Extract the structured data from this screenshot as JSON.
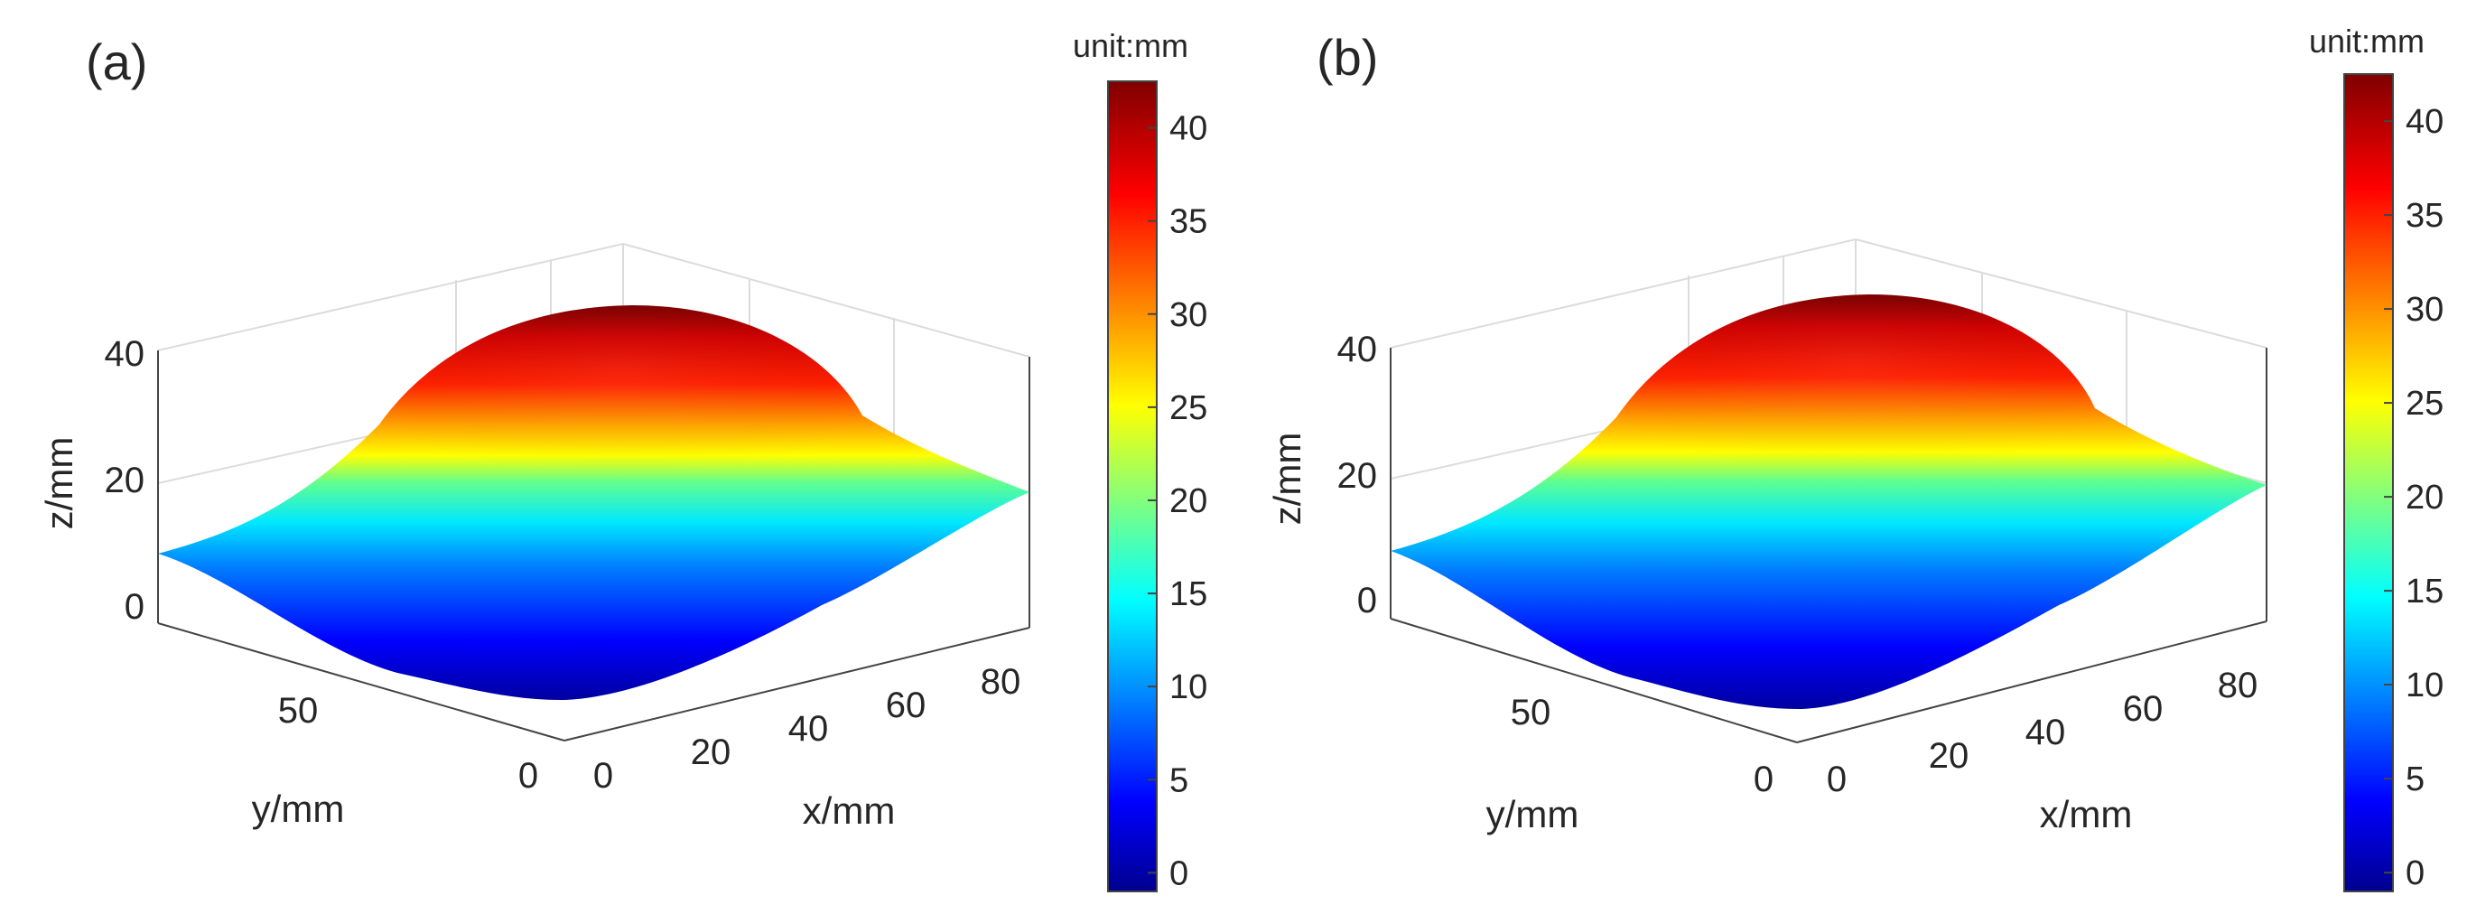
{
  "figure": {
    "panels": [
      "(a)",
      "(b)"
    ]
  },
  "chart_data": [
    {
      "type": "surface",
      "panel_label": "(a)",
      "zlabel": "z/mm",
      "xlabel": "x/mm",
      "ylabel": "y/mm",
      "z_ticks": [
        0,
        20,
        40
      ],
      "x_ticks": [
        0,
        20,
        40,
        60,
        80
      ],
      "y_ticks": [
        0,
        50
      ],
      "xlim": [
        0,
        90
      ],
      "ylim": [
        0,
        90
      ],
      "zlim": [
        0,
        42
      ],
      "surface": {
        "description": "smooth dome on a flat-ish base",
        "peak_z": 42,
        "edge_z_left": 8,
        "edge_z_right": 18,
        "min_z": 0
      },
      "colorbar": {
        "title": "unit:mm",
        "ticks": [
          0,
          5,
          10,
          15,
          20,
          25,
          30,
          35,
          40
        ],
        "range": [
          -1,
          42.5
        ],
        "colormap": "jet"
      }
    },
    {
      "type": "surface",
      "panel_label": "(b)",
      "zlabel": "z/mm",
      "xlabel": "x/mm",
      "ylabel": "y/mm",
      "z_ticks": [
        0,
        20,
        40
      ],
      "x_ticks": [
        0,
        20,
        40,
        60,
        80
      ],
      "y_ticks": [
        0,
        50
      ],
      "xlim": [
        0,
        90
      ],
      "ylim": [
        0,
        90
      ],
      "zlim": [
        0,
        42
      ],
      "surface": {
        "description": "smooth dome on a flat-ish base",
        "peak_z": 42,
        "edge_z_left": 8,
        "edge_z_right": 18,
        "min_z": 0
      },
      "colorbar": {
        "title": "unit:mm",
        "ticks": [
          0,
          5,
          10,
          15,
          20,
          25,
          30,
          35,
          40
        ],
        "range": [
          -1,
          42.5
        ],
        "colormap": "jet"
      }
    }
  ]
}
